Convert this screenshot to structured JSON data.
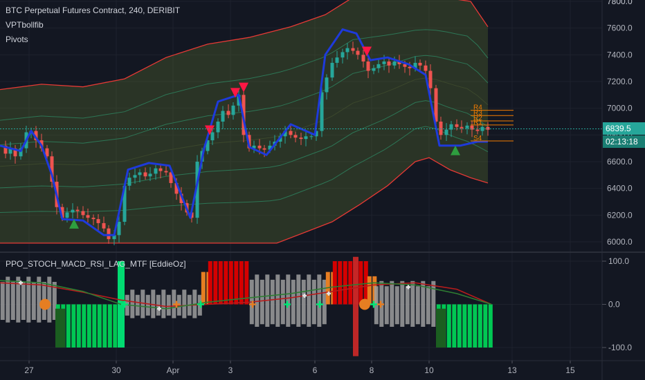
{
  "header": {
    "title": "BTC Perpetual Futures Contract, 240, DERIBIT",
    "indicators": [
      "VPTbollfib",
      "Pivots"
    ]
  },
  "price_tag": {
    "value": "6839.5",
    "countdown": "02:13:18",
    "color": "#26a69a"
  },
  "pivot_labels": [
    "R4",
    "R3",
    "R2",
    "R1",
    "S4"
  ],
  "oscillator": {
    "title": "PPO_STOCH_MACD_RSI_LAG_MTF [EddieOz]"
  },
  "colors": {
    "background": "#131722",
    "up": "#26a69a",
    "down": "#ef5350",
    "band_outer": "#e53935",
    "band_inner": "#2e7d5b",
    "blue_line": "#1e3adb",
    "pivots": "#f57c00",
    "hist_green": "#00c853",
    "hist_dark_green": "#1b5e20",
    "hist_red": "#d50000",
    "hist_orange": "#e67e22",
    "hist_gray": "#9e9e9e"
  },
  "chart_data": [
    {
      "type": "candlestick",
      "title": "BTC Perpetual Futures Contract, 240, DERIBIT",
      "y_axis": {
        "ticks": [
          6000,
          6200,
          6400,
          6600,
          6800,
          7000,
          7200,
          7400,
          7600,
          7800
        ],
        "tick_labels": [
          "6000.0",
          "6200.0",
          "6400.0",
          "6600.0",
          "6800.0",
          "7000.0",
          "7200.0",
          "7400.0",
          "7600.0",
          "7800.0"
        ],
        "ylim": [
          5950,
          7830
        ]
      },
      "x_axis": {
        "tick_labels": [
          "27",
          "30",
          "Apr",
          "3",
          "6",
          "8",
          "10",
          "13",
          "15"
        ]
      },
      "last_price": 6839.5,
      "price_path": [
        [
          0,
          6720
        ],
        [
          8,
          6660
        ],
        [
          15,
          6700
        ],
        [
          22,
          6640
        ],
        [
          30,
          6700
        ],
        [
          38,
          6820
        ],
        [
          45,
          6830
        ],
        [
          52,
          6760
        ],
        [
          60,
          6700
        ],
        [
          68,
          6640
        ],
        [
          75,
          6450
        ],
        [
          82,
          6260
        ],
        [
          90,
          6180
        ],
        [
          97,
          6220
        ],
        [
          105,
          6240
        ],
        [
          112,
          6230
        ],
        [
          120,
          6200
        ],
        [
          127,
          6180
        ],
        [
          135,
          6170
        ],
        [
          142,
          6140
        ],
        [
          150,
          6100
        ],
        [
          157,
          6020
        ],
        [
          165,
          6050
        ],
        [
          172,
          6150
        ],
        [
          180,
          6420
        ],
        [
          187,
          6480
        ],
        [
          195,
          6500
        ],
        [
          202,
          6520
        ],
        [
          210,
          6490
        ],
        [
          217,
          6510
        ],
        [
          225,
          6550
        ],
        [
          232,
          6530
        ],
        [
          240,
          6520
        ],
        [
          247,
          6440
        ],
        [
          255,
          6360
        ],
        [
          262,
          6290
        ],
        [
          270,
          6220
        ],
        [
          277,
          6180
        ],
        [
          285,
          6600
        ],
        [
          292,
          6680
        ],
        [
          300,
          6760
        ],
        [
          307,
          6820
        ],
        [
          315,
          6900
        ],
        [
          322,
          6980
        ],
        [
          330,
          6950
        ],
        [
          337,
          7020
        ],
        [
          345,
          7100
        ],
        [
          352,
          6800
        ],
        [
          360,
          6700
        ],
        [
          367,
          6720
        ],
        [
          375,
          6700
        ],
        [
          382,
          6690
        ],
        [
          390,
          6720
        ],
        [
          397,
          6750
        ],
        [
          405,
          6790
        ],
        [
          412,
          6830
        ],
        [
          420,
          6800
        ],
        [
          427,
          6780
        ],
        [
          435,
          6770
        ],
        [
          442,
          6790
        ],
        [
          450,
          6790
        ],
        [
          457,
          6830
        ],
        [
          465,
          7120
        ],
        [
          472,
          7230
        ],
        [
          480,
          7340
        ],
        [
          487,
          7380
        ],
        [
          495,
          7420
        ],
        [
          502,
          7450
        ],
        [
          510,
          7430
        ],
        [
          517,
          7400
        ],
        [
          525,
          7350
        ],
        [
          532,
          7280
        ],
        [
          540,
          7300
        ],
        [
          547,
          7330
        ],
        [
          555,
          7350
        ],
        [
          562,
          7320
        ],
        [
          570,
          7350
        ],
        [
          577,
          7330
        ],
        [
          585,
          7310
        ],
        [
          592,
          7300
        ],
        [
          600,
          7340
        ],
        [
          607,
          7320
        ],
        [
          615,
          7280
        ],
        [
          622,
          7150
        ],
        [
          630,
          6900
        ],
        [
          637,
          6800
        ],
        [
          645,
          6840
        ],
        [
          652,
          6880
        ],
        [
          660,
          6860
        ],
        [
          667,
          6850
        ],
        [
          675,
          6870
        ],
        [
          682,
          6840
        ],
        [
          690,
          6830
        ],
        [
          697,
          6860
        ],
        [
          705,
          6839
        ]
      ],
      "bands": {
        "upper": [
          [
            0,
            7140
          ],
          [
            60,
            7180
          ],
          [
            120,
            7160
          ],
          [
            180,
            7220
          ],
          [
            240,
            7380
          ],
          [
            300,
            7480
          ],
          [
            360,
            7530
          ],
          [
            420,
            7610
          ],
          [
            470,
            7700
          ],
          [
            510,
            7830
          ],
          [
            550,
            7830
          ],
          [
            600,
            7830
          ],
          [
            640,
            7830
          ],
          [
            680,
            7800
          ],
          [
            705,
            7610
          ]
        ],
        "lower": [
          [
            0,
            5990
          ],
          [
            400,
            5990
          ],
          [
            440,
            6070
          ],
          [
            480,
            6150
          ],
          [
            520,
            6280
          ],
          [
            560,
            6420
          ],
          [
            600,
            6600
          ],
          [
            620,
            6630
          ],
          [
            650,
            6540
          ],
          [
            680,
            6480
          ],
          [
            705,
            6440
          ]
        ],
        "blue": [
          [
            0,
            6720
          ],
          [
            30,
            6680
          ],
          [
            45,
            6830
          ],
          [
            60,
            6720
          ],
          [
            75,
            6500
          ],
          [
            90,
            6170
          ],
          [
            120,
            6160
          ],
          [
            150,
            6050
          ],
          [
            165,
            6050
          ],
          [
            185,
            6540
          ],
          [
            215,
            6590
          ],
          [
            245,
            6570
          ],
          [
            275,
            6180
          ],
          [
            295,
            6700
          ],
          [
            315,
            7050
          ],
          [
            345,
            7100
          ],
          [
            360,
            6710
          ],
          [
            385,
            6650
          ],
          [
            420,
            6880
          ],
          [
            455,
            6800
          ],
          [
            470,
            7400
          ],
          [
            495,
            7590
          ],
          [
            515,
            7560
          ],
          [
            535,
            7360
          ],
          [
            560,
            7380
          ],
          [
            590,
            7330
          ],
          [
            615,
            7250
          ],
          [
            635,
            6720
          ],
          [
            665,
            6720
          ],
          [
            690,
            6750
          ],
          [
            705,
            6750
          ]
        ]
      },
      "signals": {
        "sell": [
          [
            303,
            6830
          ],
          [
            340,
            7110
          ],
          [
            352,
            7150
          ],
          [
            530,
            7420
          ]
        ],
        "buy": [
          [
            107,
            6140
          ],
          [
            658,
            6690
          ]
        ]
      },
      "pivots": [
        {
          "label": "R4",
          "value": 6985
        },
        {
          "label": "R3",
          "value": 6945
        },
        {
          "label": "R2",
          "value": 6905
        },
        {
          "label": "R1",
          "value": 6875
        },
        {
          "label": "S4",
          "value": 6755
        }
      ]
    },
    {
      "type": "bar",
      "title": "PPO_STOCH_MACD_RSI_LAG_MTF [EddieOz]",
      "y_axis": {
        "ticks": [
          -100,
          0,
          100
        ],
        "tick_labels": [
          "-100.0",
          "0.0",
          "100.0"
        ],
        "ylim": [
          -120,
          110
        ]
      },
      "segments": [
        {
          "x0": 0,
          "x1": 80,
          "level_top": 60,
          "level_bottom": -40,
          "color": "gray"
        },
        {
          "x0": 80,
          "x1": 170,
          "level_top": 0,
          "level_bottom": -100,
          "color": "green"
        },
        {
          "x0": 170,
          "x1": 180,
          "level_top": 100,
          "level_bottom": -100,
          "color": "bright_green_line"
        },
        {
          "x0": 180,
          "x1": 290,
          "level_top": 30,
          "level_bottom": -30,
          "color": "gray"
        },
        {
          "x0": 290,
          "x1": 300,
          "level_top": 75,
          "level_bottom": 0,
          "color": "orange"
        },
        {
          "x0": 300,
          "x1": 360,
          "level_top": 100,
          "level_bottom": 0,
          "color": "red"
        },
        {
          "x0": 360,
          "x1": 470,
          "level_top": 65,
          "level_bottom": -50,
          "color": "gray"
        },
        {
          "x0": 470,
          "x1": 480,
          "level_top": 75,
          "level_bottom": 0,
          "color": "orange"
        },
        {
          "x0": 480,
          "x1": 530,
          "level_top": 100,
          "level_bottom": 0,
          "color": "red"
        },
        {
          "x0": 510,
          "x1": 518,
          "level_top": 110,
          "level_bottom": -120,
          "color": "red_line"
        },
        {
          "x0": 530,
          "x1": 540,
          "level_top": 65,
          "level_bottom": 0,
          "color": "orange"
        },
        {
          "x0": 540,
          "x1": 630,
          "level_top": 50,
          "level_bottom": -50,
          "color": "gray"
        },
        {
          "x0": 630,
          "x1": 710,
          "level_top": 0,
          "level_bottom": -100,
          "color": "green"
        }
      ],
      "lines": {
        "green": [
          [
            0,
            55
          ],
          [
            60,
            50
          ],
          [
            120,
            30
          ],
          [
            175,
            0
          ],
          [
            240,
            -10
          ],
          [
            300,
            5
          ],
          [
            360,
            15
          ],
          [
            420,
            25
          ],
          [
            480,
            40
          ],
          [
            540,
            50
          ],
          [
            600,
            45
          ],
          [
            660,
            25
          ],
          [
            710,
            0
          ]
        ],
        "red": [
          [
            0,
            50
          ],
          [
            60,
            45
          ],
          [
            120,
            28
          ],
          [
            175,
            10
          ],
          [
            240,
            -5
          ],
          [
            300,
            0
          ],
          [
            360,
            5
          ],
          [
            420,
            15
          ],
          [
            480,
            30
          ],
          [
            540,
            45
          ],
          [
            600,
            50
          ],
          [
            660,
            35
          ],
          [
            710,
            0
          ]
        ]
      },
      "markers": [
        {
          "x": 30,
          "y": 50,
          "kind": "cross",
          "color": "white"
        },
        {
          "x": 65,
          "y": 0,
          "kind": "dot",
          "color": "orange"
        },
        {
          "x": 180,
          "y": 0,
          "kind": "cross",
          "color": "green"
        },
        {
          "x": 230,
          "y": -10,
          "kind": "cross",
          "color": "white"
        },
        {
          "x": 255,
          "y": 0,
          "kind": "cross",
          "color": "orange"
        },
        {
          "x": 290,
          "y": 0,
          "kind": "cross",
          "color": "green"
        },
        {
          "x": 365,
          "y": 0,
          "kind": "cross",
          "color": "orange"
        },
        {
          "x": 415,
          "y": 0,
          "kind": "cross",
          "color": "green"
        },
        {
          "x": 440,
          "y": 20,
          "kind": "cross",
          "color": "white"
        },
        {
          "x": 462,
          "y": 0,
          "kind": "cross",
          "color": "green"
        },
        {
          "x": 475,
          "y": 25,
          "kind": "cross",
          "color": "white"
        },
        {
          "x": 527,
          "y": 0,
          "kind": "dot",
          "color": "orange"
        },
        {
          "x": 540,
          "y": 0,
          "kind": "cross",
          "color": "green"
        },
        {
          "x": 550,
          "y": 0,
          "kind": "cross",
          "color": "orange"
        },
        {
          "x": 590,
          "y": 40,
          "kind": "cross",
          "color": "white"
        }
      ]
    }
  ]
}
